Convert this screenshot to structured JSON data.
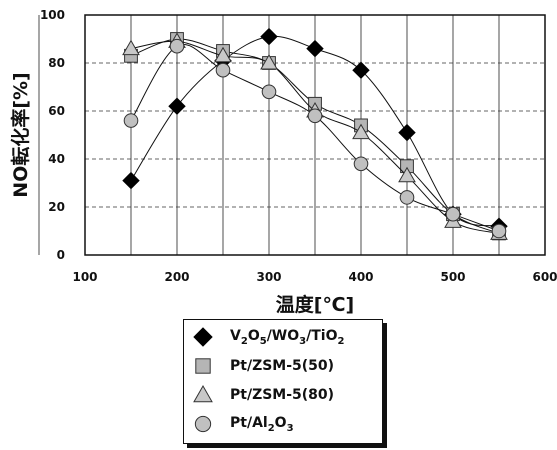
{
  "chart_data": {
    "type": "line",
    "xlabel": "温度[℃]",
    "ylabel": "NO転化率[%]",
    "xlim": [
      100,
      600
    ],
    "ylim": [
      0,
      100
    ],
    "xticks": [
      100,
      200,
      300,
      400,
      500,
      600
    ],
    "yticks": [
      0,
      20,
      40,
      60,
      80,
      100
    ],
    "grid": "vertical-solid, horizontal-dashed",
    "legend_position": "bottom-center",
    "series": [
      {
        "name": "V2O5/WO3/TiO2",
        "label_parts": [
          [
            "V",
            ""
          ],
          [
            "2",
            "sub"
          ],
          [
            "O",
            ""
          ],
          [
            "5",
            "sub"
          ],
          [
            "/WO",
            ""
          ],
          [
            "3",
            "sub"
          ],
          [
            "/TiO",
            ""
          ],
          [
            "2",
            "sub"
          ]
        ],
        "marker": "diamond",
        "color": "#000000",
        "x": [
          150,
          200,
          250,
          300,
          350,
          400,
          450,
          500,
          550
        ],
        "y": [
          31,
          62,
          81,
          91,
          86,
          77,
          51,
          17,
          12
        ]
      },
      {
        "name": "Pt/ZSM-5(50)",
        "label_parts": [
          [
            "Pt/ZSM-5(50)",
            ""
          ]
        ],
        "marker": "square",
        "color": "#b5b5b5",
        "x": [
          150,
          200,
          250,
          300,
          350,
          400,
          450,
          500,
          550
        ],
        "y": [
          83,
          90,
          85,
          80,
          63,
          54,
          37,
          17,
          9
        ]
      },
      {
        "name": "Pt/ZSM-5(80)",
        "label_parts": [
          [
            "Pt/ZSM-5(80)",
            ""
          ]
        ],
        "marker": "triangle",
        "color": "#c8c8c8",
        "x": [
          150,
          200,
          250,
          300,
          350,
          400,
          450,
          500,
          550
        ],
        "y": [
          86,
          89,
          83,
          80,
          60,
          51,
          33,
          14,
          9
        ]
      },
      {
        "name": "Pt/Al2O3",
        "label_parts": [
          [
            "Pt/Al",
            ""
          ],
          [
            "2",
            "sub"
          ],
          [
            "O",
            ""
          ],
          [
            "3",
            "sub"
          ]
        ],
        "marker": "circle",
        "color": "#c0c0c0",
        "x": [
          150,
          200,
          250,
          300,
          350,
          400,
          450,
          500,
          550
        ],
        "y": [
          56,
          87,
          77,
          68,
          58,
          38,
          24,
          17,
          10
        ]
      }
    ]
  }
}
